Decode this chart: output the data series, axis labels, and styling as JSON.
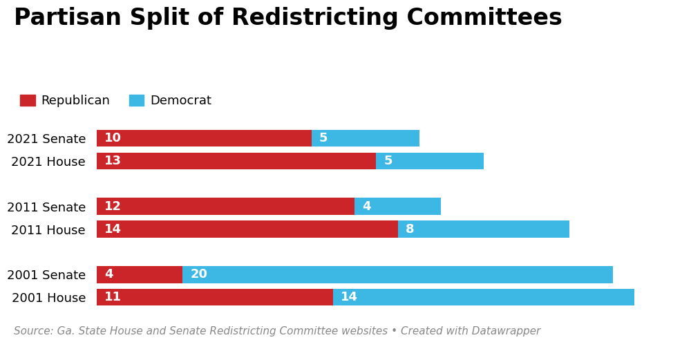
{
  "title": "Partisan Split of Redistricting Committees",
  "categories": [
    "2021 Senate",
    "2021 House",
    "2011 Senate",
    "2011 House",
    "2001 Senate",
    "2001 House"
  ],
  "republican": [
    10,
    13,
    12,
    14,
    4,
    11
  ],
  "democrat": [
    5,
    5,
    4,
    8,
    20,
    14
  ],
  "republican_color": "#cc2529",
  "democrat_color": "#3db7e4",
  "background_color": "#ffffff",
  "text_color": "#000000",
  "label_color": "#ffffff",
  "title_fontsize": 24,
  "label_fontsize": 13,
  "legend_fontsize": 13,
  "category_fontsize": 13,
  "source_text": "Source: Ga. State House and Senate Redistricting Committee websites • Created with Datawrapper",
  "source_fontsize": 11,
  "bar_height": 0.6,
  "xlim_max": 27,
  "y_positions": [
    5.8,
    5.0,
    3.4,
    2.6,
    1.0,
    0.2
  ],
  "ylim": [
    -0.35,
    6.6
  ]
}
